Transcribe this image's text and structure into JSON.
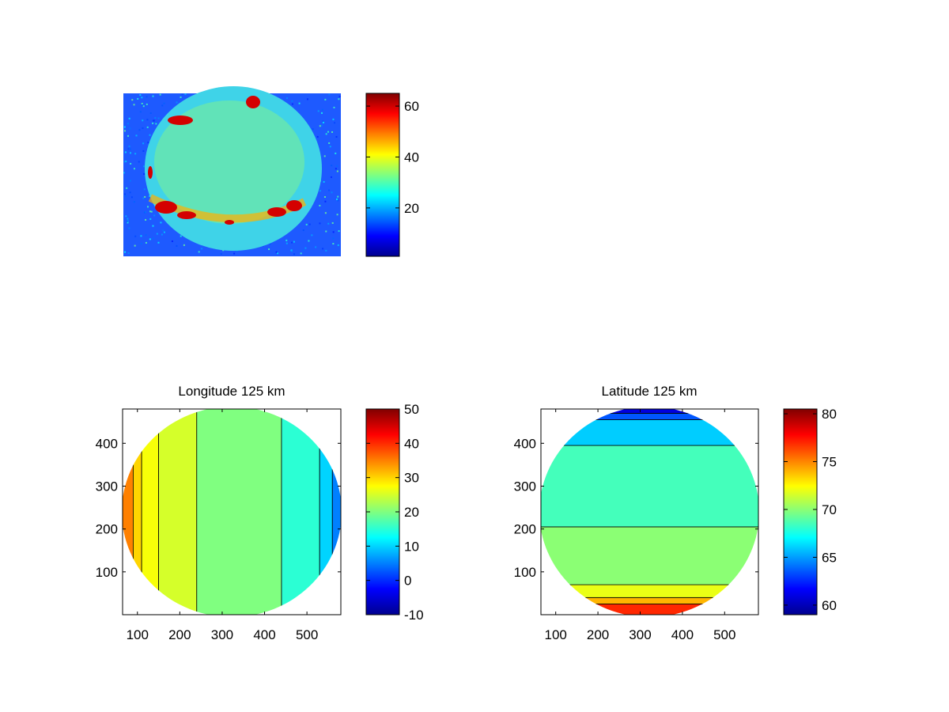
{
  "chart_data": [
    {
      "type": "heatmap",
      "title": "",
      "xlabel": "",
      "ylabel": "",
      "axes_visible": false,
      "colormap": "jet",
      "colorbar": {
        "min": 1,
        "max": 65,
        "ticks": [
          20,
          40,
          60
        ]
      },
      "features": "noisy emission image of a bright disk (~25-35) on a blue background (~10-15) with red hot spots (~55-65) along the upper-left limb, top, and lower band"
    },
    {
      "type": "heatmap",
      "subtype": "filled contour",
      "title": "Longitude 125 km",
      "xlabel": "",
      "ylabel": "",
      "xlim": [
        65,
        580
      ],
      "ylim": [
        0,
        480
      ],
      "xticks": [
        100,
        200,
        300,
        400,
        500
      ],
      "yticks": [
        100,
        200,
        300,
        400
      ],
      "colormap": "jet",
      "colorbar": {
        "min": -10,
        "max": 50,
        "ticks": [
          -10,
          0,
          10,
          20,
          30,
          40,
          50
        ]
      },
      "bands": [
        {
          "from_x": 65,
          "to_x": 90,
          "level": 35
        },
        {
          "from_x": 90,
          "to_x": 110,
          "level": 30
        },
        {
          "from_x": 110,
          "to_x": 150,
          "level": 27
        },
        {
          "from_x": 150,
          "to_x": 240,
          "level": 25
        },
        {
          "from_x": 240,
          "to_x": 440,
          "level": 20
        },
        {
          "from_x": 440,
          "to_x": 530,
          "level": 15
        },
        {
          "from_x": 530,
          "to_x": 560,
          "level": 10
        },
        {
          "from_x": 560,
          "to_x": 580,
          "level": 5
        }
      ]
    },
    {
      "type": "heatmap",
      "subtype": "filled contour",
      "title": "Latitude 125 km",
      "xlabel": "",
      "ylabel": "",
      "xlim": [
        65,
        580
      ],
      "ylim": [
        0,
        480
      ],
      "xticks": [
        100,
        200,
        300,
        400,
        500
      ],
      "yticks": [
        100,
        200,
        300,
        400
      ],
      "colormap": "jet",
      "colorbar": {
        "min": 59,
        "max": 80.5,
        "ticks": [
          60,
          65,
          70,
          75,
          80
        ]
      },
      "bands": [
        {
          "from_y": 0,
          "to_y": 25,
          "level": 77
        },
        {
          "from_y": 25,
          "to_y": 40,
          "level": 74
        },
        {
          "from_y": 40,
          "to_y": 70,
          "level": 72
        },
        {
          "from_y": 70,
          "to_y": 205,
          "level": 70
        },
        {
          "from_y": 205,
          "to_y": 395,
          "level": 68.5
        },
        {
          "from_y": 395,
          "to_y": 455,
          "level": 66
        },
        {
          "from_y": 455,
          "to_y": 470,
          "level": 63.5
        },
        {
          "from_y": 470,
          "to_y": 480,
          "level": 61
        }
      ]
    }
  ]
}
